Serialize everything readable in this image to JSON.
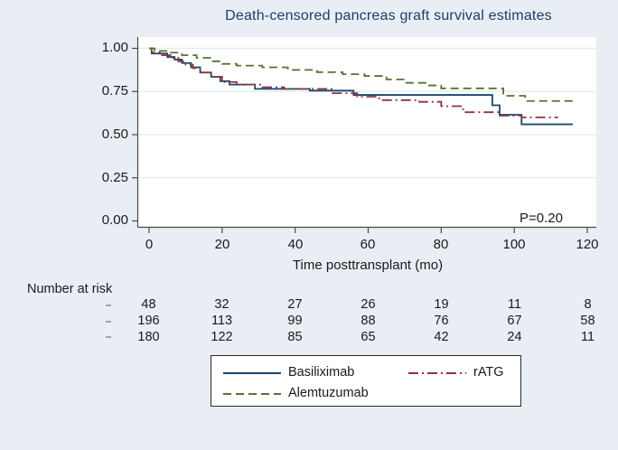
{
  "axis_labels": {
    "y": [
      "1.00",
      "0.75",
      "0.50",
      "0.25",
      "0.00"
    ],
    "x": [
      "0",
      "20",
      "40",
      "60",
      "80",
      "100",
      "120"
    ]
  },
  "colors": {
    "background": "#e8eef4",
    "plot_background": "#ffffff",
    "grid_line": "#e2ebf3",
    "axis_line": "#4a4a4a",
    "title_text": "#1f3d68",
    "basiliximab_line": "#1a476f",
    "ratg_line": "#90353b",
    "alemtuzumab_line": "#55752f"
  },
  "chart_data": {
    "type": "line",
    "subtype": "kaplan-meier-step",
    "title": "Death-censored pancreas graft survival estimates",
    "xlabel": "Time posttransplant (mo)",
    "ylabel": "",
    "xlim": [
      0,
      120
    ],
    "ylim": [
      0,
      1
    ],
    "xticks": [
      0,
      20,
      40,
      60,
      80,
      100,
      120
    ],
    "yticks": [
      0,
      0.25,
      0.5,
      0.75,
      1.0
    ],
    "grid": "horizontal",
    "legend_position": "bottom",
    "annotations": [
      {
        "text": "P=0.20",
        "x": 107,
        "y": 0.04
      }
    ],
    "series": [
      {
        "name": "Basiliximab",
        "color": "#1a476f",
        "line_style": "solid",
        "points": [
          [
            0,
            1.0
          ],
          [
            0.7,
            0.97
          ],
          [
            5,
            0.95
          ],
          [
            7,
            0.935
          ],
          [
            9,
            0.915
          ],
          [
            11.5,
            0.89
          ],
          [
            14,
            0.86
          ],
          [
            17,
            0.835
          ],
          [
            19.5,
            0.81
          ],
          [
            22,
            0.79
          ],
          [
            29,
            0.765
          ],
          [
            44,
            0.755
          ],
          [
            56,
            0.73
          ],
          [
            94,
            0.67
          ],
          [
            96,
            0.615
          ],
          [
            102,
            0.56
          ],
          [
            116,
            0.56
          ]
        ]
      },
      {
        "name": "rATG",
        "color": "#90353b",
        "line_style": "dash-dot",
        "points": [
          [
            0,
            1.0
          ],
          [
            0.7,
            0.975
          ],
          [
            3,
            0.96
          ],
          [
            6,
            0.945
          ],
          [
            8,
            0.925
          ],
          [
            10,
            0.905
          ],
          [
            12,
            0.885
          ],
          [
            14,
            0.86
          ],
          [
            17,
            0.835
          ],
          [
            20,
            0.805
          ],
          [
            24,
            0.79
          ],
          [
            31,
            0.775
          ],
          [
            37,
            0.765
          ],
          [
            50,
            0.74
          ],
          [
            57,
            0.72
          ],
          [
            63,
            0.7
          ],
          [
            74,
            0.69
          ],
          [
            80,
            0.665
          ],
          [
            86,
            0.63
          ],
          [
            96,
            0.61
          ],
          [
            102,
            0.6
          ],
          [
            112,
            0.6
          ]
        ]
      },
      {
        "name": "Alemtuzumab",
        "color": "#55752f",
        "line_style": "dashed",
        "points": [
          [
            0,
            1.0
          ],
          [
            1.5,
            0.985
          ],
          [
            5,
            0.975
          ],
          [
            9,
            0.96
          ],
          [
            13,
            0.945
          ],
          [
            17,
            0.925
          ],
          [
            20,
            0.91
          ],
          [
            24,
            0.9
          ],
          [
            31,
            0.89
          ],
          [
            38,
            0.875
          ],
          [
            46,
            0.862
          ],
          [
            53,
            0.85
          ],
          [
            59,
            0.84
          ],
          [
            65,
            0.82
          ],
          [
            70,
            0.8
          ],
          [
            76,
            0.785
          ],
          [
            80,
            0.768
          ],
          [
            97,
            0.725
          ],
          [
            103,
            0.695
          ],
          [
            117,
            0.695
          ]
        ]
      }
    ],
    "number_at_risk": {
      "heading": "Number at risk",
      "times": [
        0,
        20,
        40,
        60,
        80,
        100,
        120
      ],
      "rows": [
        [
          48,
          32,
          27,
          26,
          19,
          11,
          8
        ],
        [
          196,
          113,
          99,
          88,
          76,
          67,
          58
        ],
        [
          180,
          122,
          85,
          65,
          42,
          24,
          11
        ]
      ]
    }
  }
}
